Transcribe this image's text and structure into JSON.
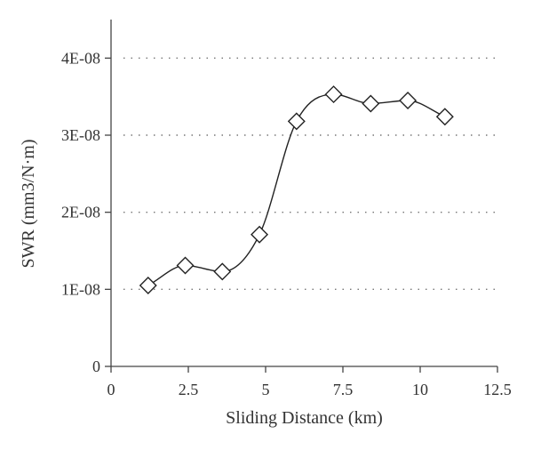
{
  "chart_data": {
    "type": "scatter",
    "title": "",
    "xlabel": "Sliding Distance (km)",
    "ylabel": "SWR (mm3/N·m)",
    "xlim": [
      0,
      12.5
    ],
    "ylim": [
      0,
      4.5e-08
    ],
    "x_ticks": [
      0,
      2.5,
      5,
      7.5,
      10,
      12.5
    ],
    "x_tick_labels": [
      "0",
      "2.5",
      "5",
      "7.5",
      "10",
      "12.5"
    ],
    "y_ticks": [
      0,
      1e-08,
      2e-08,
      3e-08,
      4e-08
    ],
    "y_tick_labels": [
      "0",
      "1E-08",
      "2E-08",
      "3E-08",
      "4E-08"
    ],
    "grid": "horizontal dotted",
    "marker": "diamond",
    "smooth_line": true,
    "series": [
      {
        "x": [
          1.2,
          2.4,
          3.6,
          4.8,
          6.0,
          7.2,
          8.4,
          9.6,
          10.8
        ],
        "y": [
          1.05e-08,
          1.31e-08,
          1.23e-08,
          1.71e-08,
          3.18e-08,
          3.53e-08,
          3.41e-08,
          3.45e-08,
          3.24e-08
        ]
      }
    ]
  }
}
